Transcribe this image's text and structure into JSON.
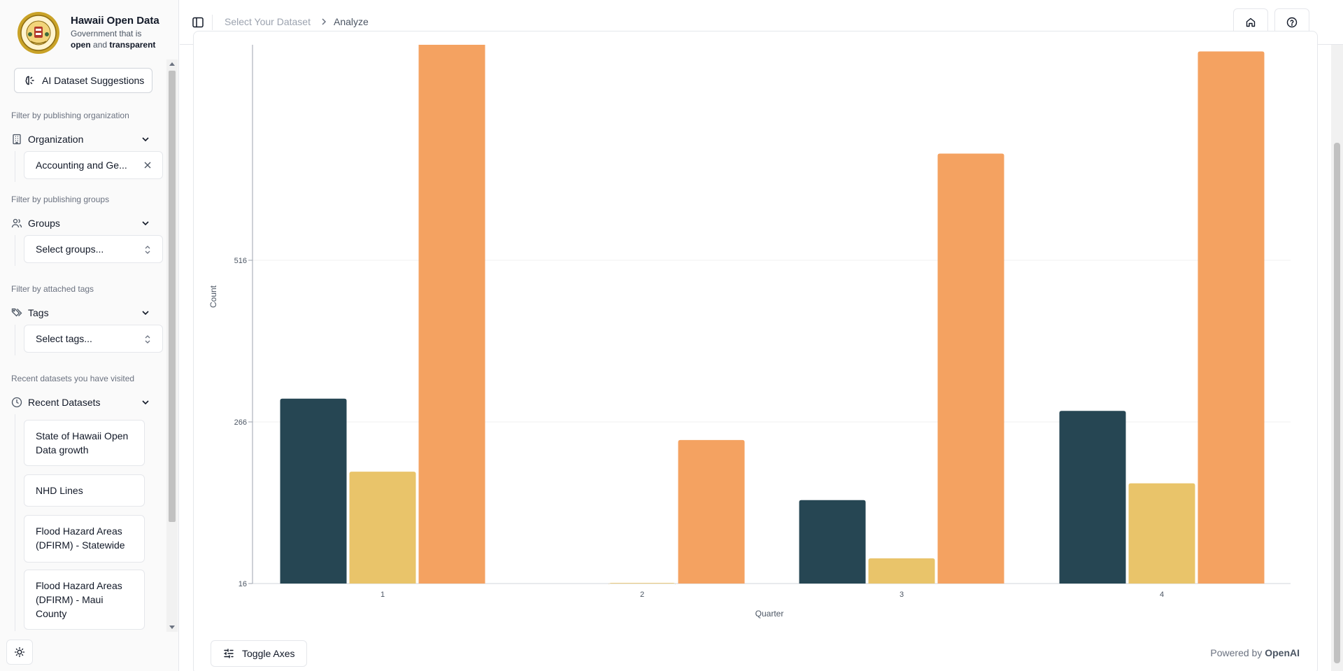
{
  "brand": {
    "title": "Hawaii Open Data",
    "tagline_prefix": "Government that is",
    "tagline_open": "open",
    "tagline_and": "and",
    "tagline_transparent": "transparent"
  },
  "sidebar": {
    "ai_button_label": "AI Dataset Suggestions",
    "organization": {
      "caption": "Filter by publishing organization",
      "label": "Organization",
      "selected": "Accounting and Ge..."
    },
    "groups": {
      "caption": "Filter by publishing groups",
      "label": "Groups",
      "placeholder": "Select groups..."
    },
    "tags": {
      "caption": "Filter by attached tags",
      "label": "Tags",
      "placeholder": "Select tags..."
    },
    "recent": {
      "caption": "Recent datasets you have visited",
      "label": "Recent Datasets",
      "items": [
        "State of Hawaii Open Data growth",
        "NHD Lines",
        "Flood Hazard Areas (DFIRM) - Statewide",
        "Flood Hazard Areas (DFIRM) - Maui County"
      ]
    }
  },
  "topbar": {
    "breadcrumb_1": "Select Your Dataset",
    "breadcrumb_2": "Analyze"
  },
  "footer": {
    "toggle_axes_label": "Toggle Axes",
    "powered_by_prefix": "Powered by",
    "powered_by_brand": "OpenAI"
  },
  "colors": {
    "series_1": "#264653",
    "series_2": "#e9c46a",
    "series_3": "#f4a261"
  },
  "chart_data": {
    "type": "bar",
    "xlabel": "Quarter",
    "ylabel": "Count",
    "categories": [
      "1",
      "2",
      "3",
      "4"
    ],
    "y_ticks": [
      16,
      266,
      516
    ],
    "ylim": [
      16,
      851
    ],
    "series": [
      {
        "values": [
          302,
          0,
          145,
          283
        ]
      },
      {
        "values": [
          189,
          17,
          55,
          171
        ]
      },
      {
        "values": [
          860,
          238,
          681,
          839
        ]
      }
    ],
    "grid": true
  }
}
